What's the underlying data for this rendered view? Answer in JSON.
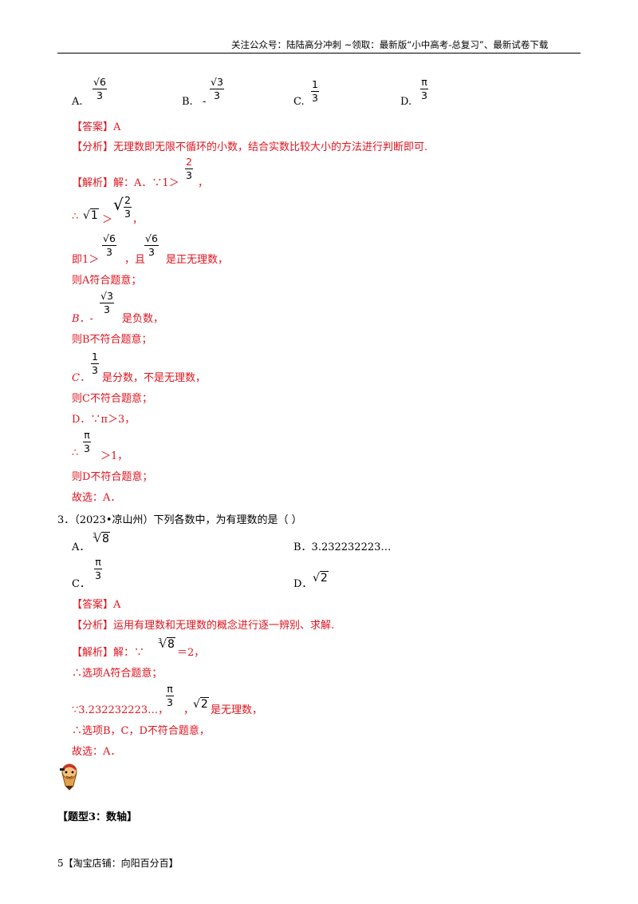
{
  "header": {
    "text": "关注公众号：陆陆高分冲刺   ~领取：最新版“小中高考-总复习”、最新试卷下载"
  },
  "q2": {
    "options": {
      "a_label": "A.",
      "a_num": "√6",
      "a_den": "3",
      "b_label": "B.",
      "b_minus": "-",
      "b_num": "√3",
      "b_den": "3",
      "c_label": "C.",
      "c_num": "1",
      "c_den": "3",
      "d_label": "D.",
      "d_num": "π",
      "d_den": "3"
    },
    "answer": "【答案】A",
    "analysis": "【分析】无理数即无限不循环的小数，结合实数比较大小的方法进行判断即可.",
    "sol_l1_a": "【解析】解：A．∵1＞",
    "sol_l1_num": "2",
    "sol_l1_den": "3",
    "sol_l1_b": "，",
    "sol_l2_a": "∴",
    "sol_l2_rad": "1",
    "sol_l2_gt": "＞",
    "sol_l2_num": "2",
    "sol_l2_den": "3",
    "sol_l2_b": "，",
    "sol_l3_a": "即1＞",
    "sol_l3_num1": "√6",
    "sol_l3_den1": "3",
    "sol_l3_b": "，且",
    "sol_l3_num2": "√6",
    "sol_l3_den2": "3",
    "sol_l3_c": "是正无理数，",
    "sol_l4": "则A符合题意；",
    "sol_l5_a": "B．-",
    "sol_l5_num": "√3",
    "sol_l5_den": "3",
    "sol_l5_b": "是负数，",
    "sol_l6": "则B不符合题意；",
    "sol_l7_a": "C．",
    "sol_l7_num": "1",
    "sol_l7_den": "3",
    "sol_l7_b": "是分数，不是无理数，",
    "sol_l8": "则C不符合题意；",
    "sol_l9": "D．∵π＞3，",
    "sol_l10_a": "∴",
    "sol_l10_num": "π",
    "sol_l10_den": "3",
    "sol_l10_b": "＞1，",
    "sol_l11": "则D不符合题意；",
    "sol_l12": "故选：A．"
  },
  "q3": {
    "stem": "3．（2023•凉山州）下列各数中，为有理数的是（      ）",
    "a_label": "A．",
    "a_idx": "3",
    "a_arg": "8",
    "b_label": "B．3.232232223…",
    "c_label": "C．",
    "c_num": "π",
    "c_den": "3",
    "d_label": "D．",
    "d_arg": "2",
    "answer": "【答案】A",
    "analysis": "【分析】运用有理数和无理数的概念进行逐一辨别、求解.",
    "sol_l1_a": "【解析】解：∵",
    "sol_l1_idx": "3",
    "sol_l1_arg": "8",
    "sol_l1_b": "＝2，",
    "sol_l2": "∴选项A符合题意；",
    "sol_l3_a": "∵3.232232223…，",
    "sol_l3_num": "π",
    "sol_l3_den": "3",
    "sol_l3_b": "，",
    "sol_l3_arg": "2",
    "sol_l3_c": "是无理数，",
    "sol_l4": "∴选项B，C，D不符合题意，",
    "sol_l5": "故选：A．"
  },
  "section": {
    "title": "【题型3：数轴】"
  },
  "footer": {
    "text": "5【淘宝店铺：向阳百分百】"
  }
}
